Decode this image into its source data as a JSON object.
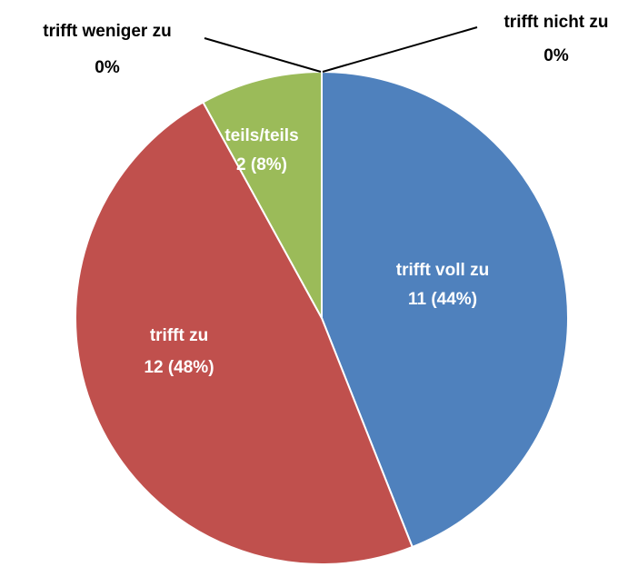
{
  "chart_data": {
    "type": "pie",
    "categories": [
      "trifft voll zu",
      "trifft zu",
      "teils/teils",
      "trifft weniger zu",
      "trifft nicht zu"
    ],
    "values": [
      11,
      12,
      2,
      0,
      0
    ],
    "value_labels": [
      "11 (44%)",
      "12 (48%)",
      "2 (8%)",
      "0%",
      "0%"
    ],
    "colors": [
      "#4f81bd",
      "#c0504d",
      "#9bbb59",
      "#8064a2",
      "#4bacc6"
    ]
  }
}
